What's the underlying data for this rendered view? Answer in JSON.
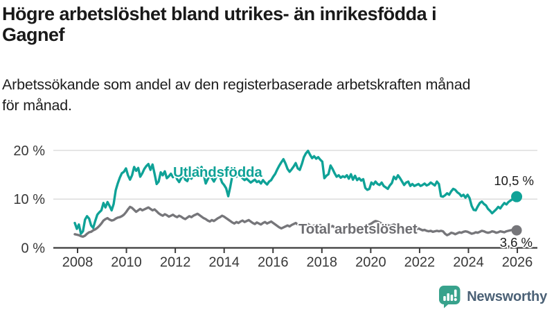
{
  "title": {
    "line1": "Högre arbetslöshet bland utrikes- än inrikesfödda i",
    "line2": "Gagnef"
  },
  "subtitle": {
    "line1": "Arbetssökande som andel av den registerbaserade arbetskraften månad",
    "line2": "för månad."
  },
  "branding": {
    "name": "Newsworthy"
  },
  "colors": {
    "series_teal": "#0fa297",
    "series_gray": "#76767a",
    "series_gray_label": "#6d6d71",
    "value_text": "#1a1a1a",
    "axis": "#3b3b3b",
    "tick_label": "#383838",
    "grid": "#d9d9d9",
    "logo_teal": "#38a28c",
    "logo_text": "#4b6176"
  },
  "chart_data": {
    "type": "line",
    "title": "Högre arbetslöshet bland utrikes- än inrikesfödda i Gagnef",
    "subtitle": "Arbetssökande som andel av den registerbaserade arbetskraften månad för månad.",
    "unit": "%",
    "x_start_year": 2008,
    "points_per_year": 12,
    "x_ticks": [
      2008,
      2010,
      2012,
      2014,
      2016,
      2018,
      2020,
      2022,
      2024,
      2026
    ],
    "y_ticks": [
      {
        "v": 0,
        "label": "0 %"
      },
      {
        "v": 10,
        "label": "10 %"
      },
      {
        "v": 20,
        "label": "20 %"
      }
    ],
    "ylim": [
      0,
      21
    ],
    "grid": "horizontal",
    "legend_position": "on-line",
    "series": [
      {
        "name": "Utlandsfödda",
        "color": "#0fa297",
        "end_label": "10,5 %",
        "end_value": 10.5,
        "values": [
          5.1,
          3.9,
          4.8,
          2.9,
          3.4,
          5.8,
          6.5,
          6.0,
          4.6,
          4.1,
          5.5,
          6.8,
          7.3,
          7.7,
          9.2,
          8.3,
          9.4,
          8.6,
          7.7,
          9.0,
          11.8,
          13.2,
          14.4,
          15.3,
          15.6,
          16.3,
          14.9,
          14.0,
          14.9,
          16.6,
          15.8,
          16.4,
          14.6,
          15.3,
          16.2,
          16.8,
          17.2,
          16.0,
          17.1,
          15.2,
          13.1,
          13.6,
          15.5,
          14.9,
          15.7,
          14.3,
          14.7,
          15.2,
          14.5,
          15.3,
          14.1,
          13.5,
          14.3,
          15.1,
          14.0,
          13.7,
          14.8,
          14.2,
          15.0,
          15.8,
          16.4,
          15.7,
          16.6,
          15.0,
          13.2,
          14.1,
          14.9,
          14.3,
          13.6,
          14.4,
          15.1,
          14.6,
          13.4,
          12.9,
          12.2,
          10.6,
          12.5,
          14.8,
          15.0,
          14.6,
          15.0,
          14.7,
          14.3,
          13.9,
          14.2,
          13.8,
          13.4,
          13.7,
          14.0,
          13.5,
          13.7,
          13.2,
          13.9,
          13.4,
          13.0,
          13.6,
          13.9,
          14.6,
          15.2,
          16.1,
          16.9,
          17.6,
          18.2,
          17.3,
          16.2,
          15.6,
          16.1,
          16.7,
          17.4,
          16.3,
          16.0,
          17.2,
          18.6,
          19.4,
          19.9,
          19.1,
          18.4,
          18.8,
          18.3,
          18.6,
          18.1,
          17.7,
          14.3,
          14.8,
          15.1,
          16.9,
          16.2,
          15.3,
          14.6,
          14.9,
          14.4,
          14.7,
          14.5,
          14.9,
          14.2,
          15.1,
          14.0,
          14.8,
          13.9,
          14.3,
          13.8,
          14.1,
          12.3,
          11.9,
          12.1,
          13.4,
          13.0,
          13.6,
          13.1,
          12.9,
          13.4,
          12.7,
          12.4,
          12.1,
          12.8,
          13.3,
          14.6,
          14.1,
          14.9,
          14.3,
          13.6,
          12.9,
          13.4,
          13.6,
          12.7,
          13.1,
          12.7,
          12.9,
          13.1,
          12.7,
          12.9,
          13.2,
          12.8,
          13.0,
          13.4,
          13.1,
          12.8,
          13.6,
          13.1,
          10.6,
          10.5,
          10.8,
          11.2,
          10.9,
          11.6,
          12.1,
          11.9,
          11.4,
          11.1,
          10.6,
          10.9,
          10.3,
          10.9,
          10.2,
          8.6,
          7.8,
          7.7,
          8.5,
          9.2,
          9.5,
          9.0,
          8.7,
          8.0,
          7.6,
          7.1,
          7.5,
          7.9,
          8.4,
          8.1,
          8.7,
          9.2,
          8.9,
          9.4,
          9.7,
          10.0,
          10.3,
          10.5
        ]
      },
      {
        "name": "Total arbetslöshet",
        "color": "#76767a",
        "end_label": "3,6 %",
        "end_value": 3.6,
        "values": [
          2.8,
          2.7,
          2.6,
          2.4,
          2.3,
          2.5,
          2.9,
          3.2,
          3.3,
          3.6,
          3.8,
          4.1,
          4.5,
          5.0,
          5.6,
          5.9,
          6.1,
          5.8,
          5.6,
          5.7,
          6.0,
          6.2,
          6.3,
          6.5,
          6.8,
          7.3,
          7.9,
          8.4,
          8.2,
          7.8,
          7.4,
          7.7,
          8.0,
          7.7,
          7.9,
          8.1,
          8.3,
          8.0,
          7.7,
          7.9,
          7.5,
          7.1,
          6.8,
          6.6,
          6.9,
          6.7,
          6.4,
          6.6,
          6.8,
          6.5,
          6.3,
          6.6,
          6.4,
          6.1,
          5.9,
          6.2,
          6.5,
          6.3,
          6.6,
          6.8,
          7.0,
          6.7,
          6.4,
          6.1,
          5.9,
          5.6,
          5.4,
          5.7,
          5.5,
          5.8,
          6.1,
          6.3,
          6.6,
          6.4,
          6.1,
          5.8,
          5.5,
          5.2,
          5.0,
          5.3,
          5.1,
          5.4,
          5.6,
          5.3,
          5.5,
          5.7,
          5.4,
          5.1,
          4.9,
          5.2,
          5.0,
          4.8,
          5.1,
          5.3,
          5.0,
          5.2,
          5.4,
          5.1,
          4.8,
          4.5,
          4.2,
          4.0,
          4.2,
          4.4,
          4.6,
          4.4,
          4.7,
          4.9,
          5.1,
          4.8,
          4.6,
          4.8,
          4.5,
          4.7,
          4.9,
          4.6,
          4.4,
          4.6,
          4.3,
          4.5,
          4.7,
          4.4,
          4.2,
          4.4,
          4.1,
          4.3,
          4.5,
          4.2,
          4.0,
          4.2,
          4.4,
          4.1,
          4.3,
          4.5,
          4.2,
          4.0,
          4.2,
          4.4,
          4.1,
          4.3,
          4.0,
          4.2,
          4.4,
          4.6,
          4.8,
          5.0,
          5.3,
          5.5,
          5.4,
          5.2,
          5.0,
          4.8,
          4.9,
          4.7,
          4.5,
          4.6,
          4.8,
          4.6,
          4.4,
          4.2,
          4.3,
          4.1,
          3.9,
          4.0,
          3.8,
          3.9,
          3.7,
          3.8,
          4.0,
          3.8,
          3.6,
          3.7,
          3.5,
          3.4,
          3.5,
          3.3,
          3.4,
          3.5,
          3.4,
          3.5,
          3.4,
          2.9,
          2.6,
          2.8,
          3.1,
          3.0,
          2.8,
          3.0,
          3.2,
          3.1,
          3.3,
          3.4,
          3.3,
          3.1,
          2.9,
          3.0,
          3.2,
          3.1,
          3.3,
          3.5,
          3.4,
          3.2,
          3.1,
          3.2,
          3.4,
          3.3,
          3.1,
          3.2,
          3.4,
          3.3,
          3.2,
          3.4,
          3.5,
          3.6,
          3.7,
          3.7,
          3.6
        ]
      }
    ]
  }
}
